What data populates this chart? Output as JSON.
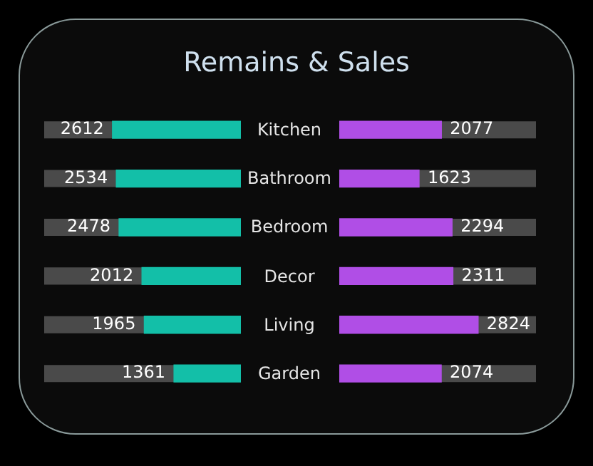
{
  "chart_data": [
    {
      "type": "bar",
      "title": "Remains & Sales",
      "orientation": "horizontal",
      "categories": [
        "Kitchen",
        "Bathroom",
        "Bedroom",
        "Decor",
        "Living",
        "Garden"
      ],
      "color": "#13bfa8",
      "values": [
        2612,
        2534,
        2478,
        2012,
        1965,
        1361
      ],
      "xlim": [
        4000,
        0
      ],
      "tick_labels": "y",
      "data_labels": true
    },
    {
      "type": "bar",
      "orientation": "horizontal",
      "categories": [
        "Kitchen",
        "Bathroom",
        "Bedroom",
        "Decor",
        "Living",
        "Garden"
      ],
      "color": "#b04ee6",
      "values": [
        2077,
        1623,
        2294,
        2311,
        2824,
        2074
      ],
      "xlim": [
        0,
        4000
      ],
      "tick_labels": false,
      "data_labels": true
    }
  ]
}
